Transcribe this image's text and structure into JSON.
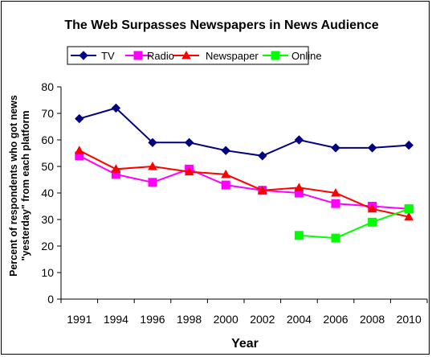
{
  "chart_data": {
    "type": "line",
    "title": "The Web Surpasses Newspapers in News Audience",
    "xlabel": "Year",
    "ylabel_lines": [
      "Percent of respondents who got news",
      "\"yesterday\" from each platform"
    ],
    "x": [
      "1991",
      "1994",
      "1996",
      "1998",
      "2000",
      "2002",
      "2004",
      "2006",
      "2008",
      "2010"
    ],
    "ylim": [
      0,
      80
    ],
    "yticks": [
      "0",
      "10",
      "20",
      "30",
      "40",
      "50",
      "60",
      "70",
      "80"
    ],
    "legend_position": "top-left",
    "grid": false,
    "series": [
      {
        "name": "TV",
        "color": "#000080",
        "marker": "diamond",
        "values": [
          68,
          72,
          59,
          59,
          56,
          54,
          60,
          57,
          57,
          58
        ]
      },
      {
        "name": "Radio",
        "color": "#FF00FF",
        "marker": "square",
        "values": [
          54,
          47,
          44,
          49,
          43,
          41,
          40,
          36,
          35,
          34
        ]
      },
      {
        "name": "Newspaper",
        "color": "#FF0000",
        "marker": "triangle",
        "values": [
          56,
          49,
          50,
          48,
          47,
          41,
          42,
          40,
          34,
          31
        ]
      },
      {
        "name": "Online",
        "color": "#00FF00",
        "marker": "square",
        "values": [
          null,
          null,
          null,
          null,
          null,
          null,
          24,
          23,
          29,
          34
        ]
      }
    ]
  }
}
